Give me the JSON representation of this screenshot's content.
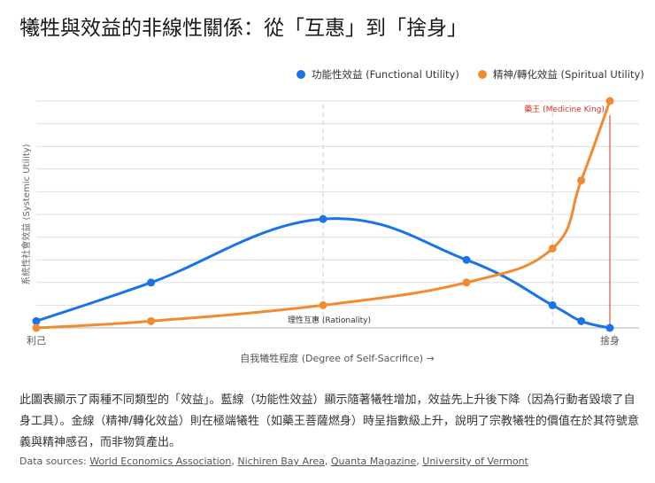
{
  "title": "犧牲與效益的非線性關係：從「互惠」到「捨身」",
  "chart_data": {
    "type": "line",
    "xlabel": "自我犧牲程度 (Degree of Self-Sacrifice) →",
    "ylabel": "系統性社會效益 (Systemic Utility)",
    "x_tick_labels": [
      {
        "x": 0,
        "label": "利己"
      },
      {
        "x": 100,
        "label": "捨身"
      }
    ],
    "xlim": [
      0,
      105
    ],
    "ylim": [
      0,
      100
    ],
    "grid": true,
    "legend_position": "top-right",
    "x": [
      0,
      20,
      50,
      75,
      90,
      95,
      100
    ],
    "series": [
      {
        "name": "功能性效益 (Functional Utility)",
        "color": "#1a73e8",
        "values": [
          3,
          20,
          48,
          30,
          10,
          3,
          0
        ]
      },
      {
        "name": "精神/轉化效益 (Spiritual Utility)",
        "color": "#f28b30",
        "values": [
          0,
          3,
          10,
          20,
          35,
          65,
          100
        ]
      }
    ],
    "annotations": [
      {
        "x": 50,
        "label": "理性互惠 (Rationality)",
        "style": "dashed",
        "color": "#cccccc"
      },
      {
        "x": 90,
        "label": "",
        "style": "dashed",
        "color": "#cccccc"
      },
      {
        "x": 100,
        "label": "藥王 (Medicine King)",
        "style": "solid",
        "color": "#d93025"
      }
    ]
  },
  "description": "此圖表顯示了兩種不同類型的「效益」。藍線（功能性效益）顯示隨著犧牲增加，效益先上升後下降（因為行動者毀壞了自身工具）。金線（精神/轉化效益）則在極端犧牲（如藥王菩薩燃身）時呈指數級上升，說明了宗教犧牲的價值在於其符號意義與精神感召，而非物質產出。",
  "sources": {
    "label": "Data sources:",
    "links": [
      "World Economics Association",
      "Nichiren Bay Area",
      "Quanta Magazine",
      "University of Vermont"
    ]
  }
}
